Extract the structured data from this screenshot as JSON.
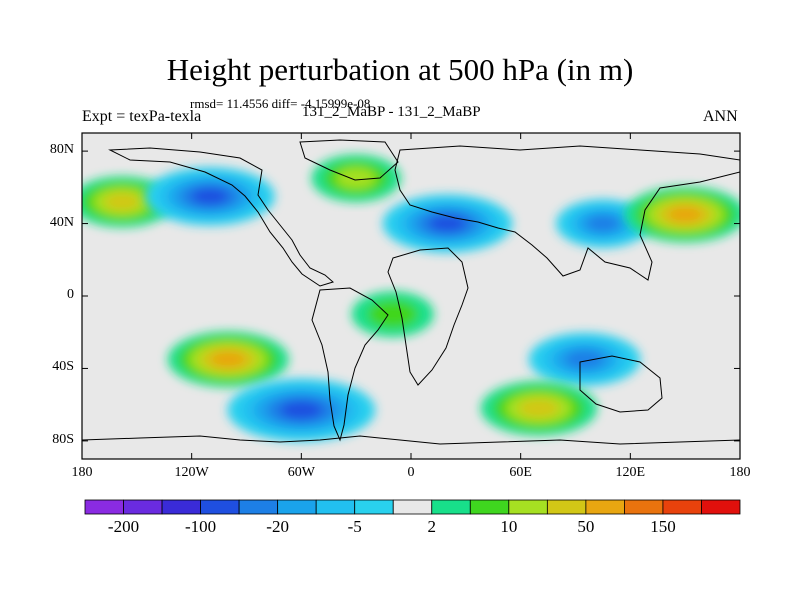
{
  "chart_data": {
    "type": "heatmap",
    "title": "Height perturbation at 500 hPa (in m)",
    "stats_line": "rmsd= 11.4556 diff= -4.15999e-08",
    "subtitle": "131_2_MaBP - 131_2_MaBP",
    "left_label": "Expt = texPa-texla",
    "right_label": "ANN",
    "x_axis": {
      "range": [
        -180,
        180
      ],
      "ticks": [
        -180,
        -120,
        -60,
        0,
        60,
        120,
        180
      ],
      "tick_labels": [
        "180",
        "120W",
        "60W",
        "0",
        "60E",
        "120E",
        "180"
      ]
    },
    "y_axis": {
      "range": [
        -90,
        90
      ],
      "ticks": [
        80,
        40,
        0,
        -40,
        -80
      ],
      "tick_labels": [
        "80N",
        "40N",
        "0",
        "40S",
        "80S"
      ]
    },
    "colorbar": {
      "levels": [
        -200,
        -150,
        -100,
        -50,
        -20,
        -10,
        -5,
        -2,
        2,
        5,
        10,
        20,
        50,
        100,
        150,
        200
      ],
      "labeled_values": [
        "-200",
        "-100",
        "-20",
        "-5",
        "2",
        "10",
        "50",
        "150"
      ],
      "colors": [
        "#8a2be2",
        "#6a2be0",
        "#3a2bd8",
        "#1f4fe0",
        "#1d7fe6",
        "#1aa3ec",
        "#22c0f0",
        "#29d1ee",
        "#e8e8e8",
        "#18df8a",
        "#3fd61f",
        "#a6e022",
        "#d2c716",
        "#e8a611",
        "#e9730e",
        "#e8420c",
        "#e1100c"
      ]
    },
    "field_regions": [
      {
        "name": "north-pacific-high",
        "lon": -158,
        "lat": 52,
        "value": 30
      },
      {
        "name": "north-america-low",
        "lon": -110,
        "lat": 55,
        "value": -60
      },
      {
        "name": "north-atlantic-high",
        "lon": -30,
        "lat": 65,
        "value": 15
      },
      {
        "name": "eurasia-low",
        "lon": 20,
        "lat": 40,
        "value": -60
      },
      {
        "name": "east-asia-low",
        "lon": 105,
        "lat": 40,
        "value": -20
      },
      {
        "name": "northwest-pacific-high",
        "lon": 150,
        "lat": 45,
        "value": 50
      },
      {
        "name": "south-pacific-high",
        "lon": -100,
        "lat": -35,
        "value": 50
      },
      {
        "name": "south-america-low",
        "lon": -60,
        "lat": -63,
        "value": -80
      },
      {
        "name": "indian-ocean-low",
        "lon": 95,
        "lat": -35,
        "value": -40
      },
      {
        "name": "southern-ocean-high",
        "lon": 70,
        "lat": -62,
        "value": 45
      },
      {
        "name": "tropical-atlantic-mid",
        "lon": -10,
        "lat": -10,
        "value": 7
      }
    ]
  }
}
